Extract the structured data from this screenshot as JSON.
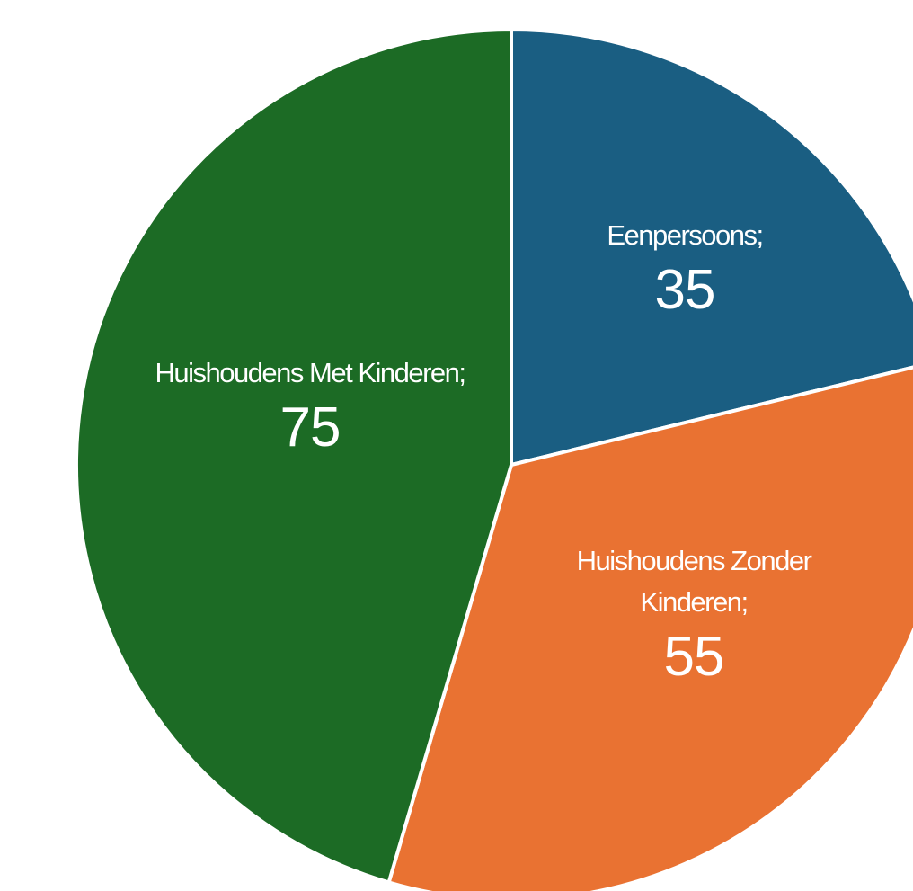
{
  "chart_data": {
    "type": "pie",
    "categories": [
      "Eenpersoons;",
      "Huishoudens Zonder Kinderen;",
      "Huishoudens Met Kinderen;"
    ],
    "values": [
      35,
      55,
      75
    ],
    "colors": [
      "#1a5e82",
      "#e97232",
      "#1c6b25"
    ]
  }
}
